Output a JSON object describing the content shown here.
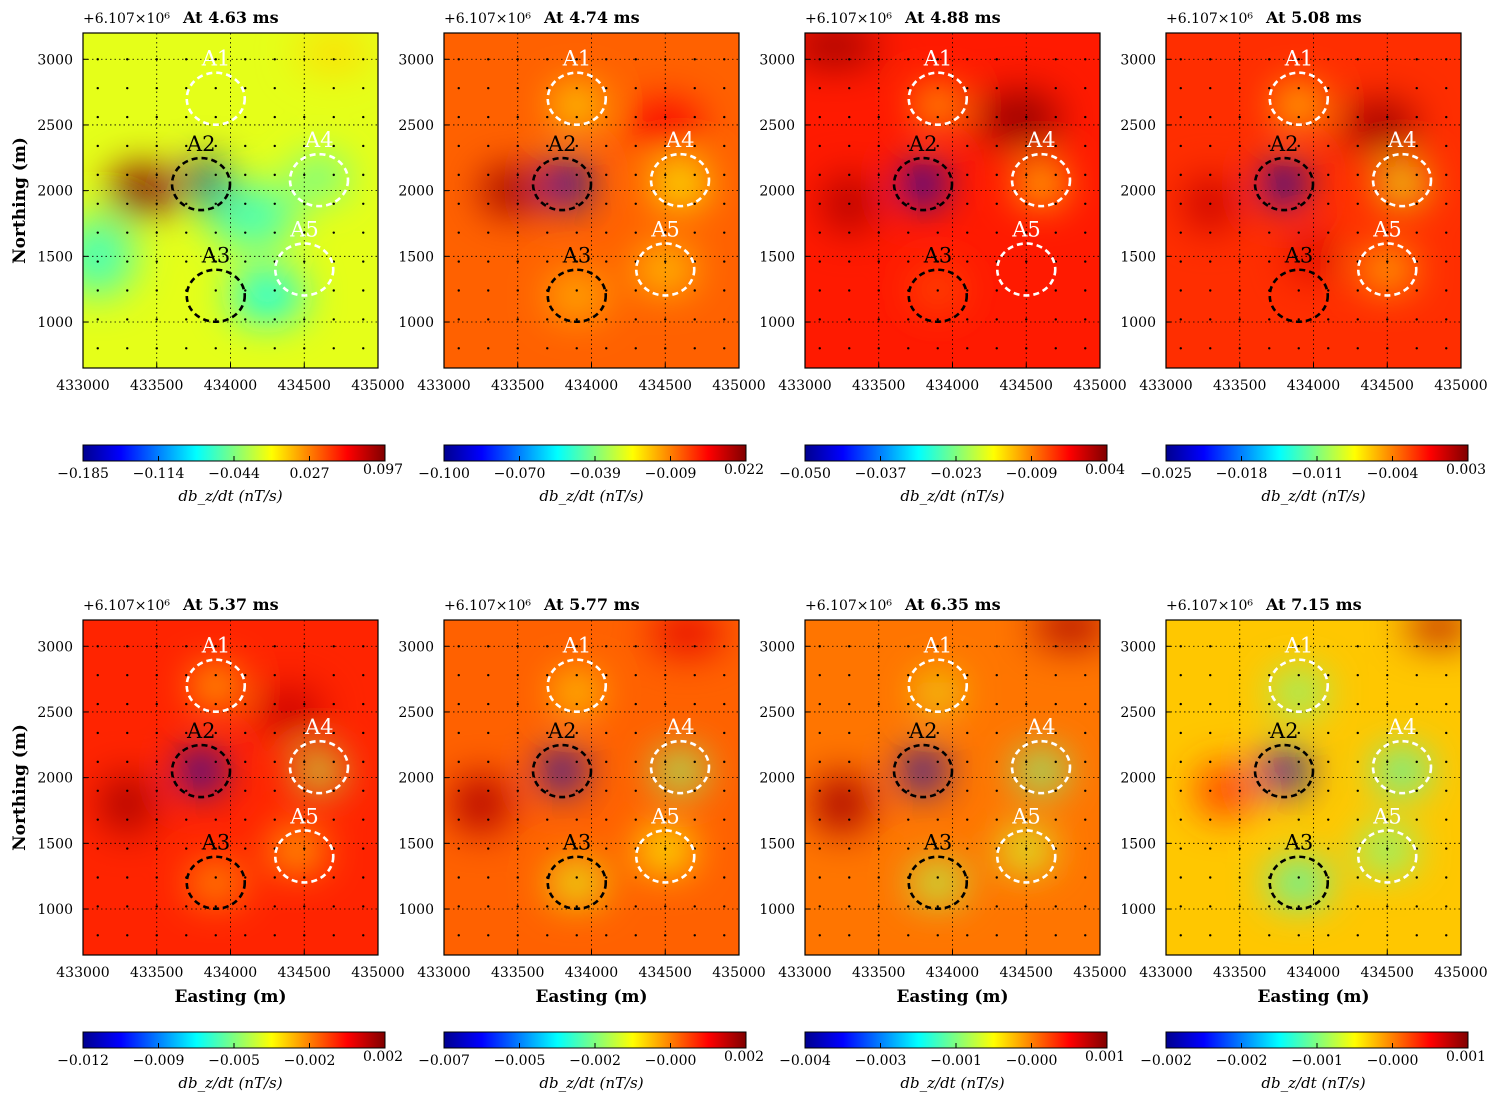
{
  "figure": {
    "offset_label": "+6.107×10⁶",
    "x_label": "Easting (m)",
    "y_label": "Northing (m)",
    "colorbar_label": "db_z/dt (nT/s)",
    "colormap": "jet"
  },
  "chart_data": [
    {
      "type": "heatmap",
      "title": "At 4.63 ms",
      "xticks": [
        "433000",
        "433500",
        "434000",
        "434500",
        "435000"
      ],
      "yticks": [
        "1000",
        "1500",
        "2000",
        "2500",
        "3000"
      ],
      "xlim": [
        433000,
        435000
      ],
      "ylim": [
        650,
        3200
      ],
      "colorbar": {
        "ticks": [
          "−0.185",
          "−0.114",
          "−0.044",
          "0.027",
          "0.097"
        ],
        "min": -0.185,
        "max": 0.097
      },
      "background_level": 0.6,
      "blobs": [
        {
          "x": 433850,
          "y": 2050,
          "level": 0.0,
          "rx": 140,
          "ry": 190,
          "name": "A2 low"
        },
        {
          "x": 433400,
          "y": 2000,
          "level": 1.0,
          "rx": 230,
          "ry": 190,
          "name": "high west of A2"
        },
        {
          "x": 434150,
          "y": 1800,
          "level": 0.45,
          "rx": 300,
          "ry": 250
        },
        {
          "x": 434250,
          "y": 1200,
          "level": 0.4,
          "rx": 250,
          "ry": 200
        },
        {
          "x": 433100,
          "y": 1500,
          "level": 0.45,
          "rx": 250,
          "ry": 300
        },
        {
          "x": 434600,
          "y": 2100,
          "level": 0.48,
          "rx": 200,
          "ry": 170
        },
        {
          "x": 434700,
          "y": 3050,
          "level": 0.66,
          "rx": 250,
          "ry": 150
        }
      ],
      "anomalies": [
        {
          "label": "A1",
          "x": 433900,
          "y": 2700,
          "style": "white"
        },
        {
          "label": "A2",
          "x": 433800,
          "y": 2050,
          "style": "black"
        },
        {
          "label": "A3",
          "x": 433900,
          "y": 1200,
          "style": "black"
        },
        {
          "label": "A4",
          "x": 434600,
          "y": 2080,
          "style": "white"
        },
        {
          "label": "A5",
          "x": 434500,
          "y": 1400,
          "style": "white"
        }
      ]
    },
    {
      "type": "heatmap",
      "title": "At 4.74 ms",
      "xticks": [
        "433000",
        "433500",
        "434000",
        "434500",
        "435000"
      ],
      "yticks": [
        "1000",
        "1500",
        "2000",
        "2500",
        "3000"
      ],
      "xlim": [
        433000,
        435000
      ],
      "ylim": [
        650,
        3200
      ],
      "colorbar": {
        "ticks": [
          "−0.100",
          "−0.070",
          "−0.039",
          "−0.009",
          "0.022"
        ],
        "min": -0.1,
        "max": 0.022
      },
      "background_level": 0.78,
      "blobs": [
        {
          "x": 433830,
          "y": 2050,
          "level": 0.05,
          "rx": 140,
          "ry": 180,
          "name": "A2 low"
        },
        {
          "x": 433450,
          "y": 2000,
          "level": 0.97,
          "rx": 200,
          "ry": 180
        },
        {
          "x": 434500,
          "y": 2500,
          "level": 0.88,
          "rx": 250,
          "ry": 180
        },
        {
          "x": 433900,
          "y": 2650,
          "level": 0.62,
          "rx": 150,
          "ry": 130
        },
        {
          "x": 434600,
          "y": 2050,
          "level": 0.62,
          "rx": 180,
          "ry": 160
        },
        {
          "x": 434500,
          "y": 1400,
          "level": 0.68,
          "rx": 200,
          "ry": 170
        },
        {
          "x": 433900,
          "y": 1200,
          "level": 0.7,
          "rx": 200,
          "ry": 170
        }
      ],
      "anomalies": [
        {
          "label": "A1",
          "x": 433900,
          "y": 2700,
          "style": "white"
        },
        {
          "label": "A2",
          "x": 433800,
          "y": 2050,
          "style": "black"
        },
        {
          "label": "A3",
          "x": 433900,
          "y": 1200,
          "style": "black"
        },
        {
          "label": "A4",
          "x": 434600,
          "y": 2080,
          "style": "white"
        },
        {
          "label": "A5",
          "x": 434500,
          "y": 1400,
          "style": "white"
        }
      ]
    },
    {
      "type": "heatmap",
      "title": "At 4.88 ms",
      "xticks": [
        "433000",
        "433500",
        "434000",
        "434500",
        "435000"
      ],
      "yticks": [
        "1000",
        "1500",
        "2000",
        "2500",
        "3000"
      ],
      "xlim": [
        433000,
        435000
      ],
      "ylim": [
        650,
        3200
      ],
      "colorbar": {
        "ticks": [
          "−0.050",
          "−0.037",
          "−0.023",
          "−0.009",
          "0.004"
        ],
        "min": -0.05,
        "max": 0.004
      },
      "background_level": 0.85,
      "blobs": [
        {
          "x": 433800,
          "y": 2050,
          "level": 0.06,
          "rx": 140,
          "ry": 170,
          "name": "A2 low"
        },
        {
          "x": 434450,
          "y": 2550,
          "level": 0.98,
          "rx": 280,
          "ry": 200
        },
        {
          "x": 433300,
          "y": 1900,
          "level": 0.95,
          "rx": 180,
          "ry": 220
        },
        {
          "x": 433200,
          "y": 3100,
          "level": 0.97,
          "rx": 300,
          "ry": 150
        },
        {
          "x": 433900,
          "y": 2650,
          "level": 0.65,
          "rx": 140,
          "ry": 120
        },
        {
          "x": 434600,
          "y": 2050,
          "level": 0.66,
          "rx": 160,
          "ry": 150
        },
        {
          "x": 433900,
          "y": 1250,
          "level": 0.8,
          "rx": 180,
          "ry": 160
        }
      ],
      "anomalies": [
        {
          "label": "A1",
          "x": 433900,
          "y": 2700,
          "style": "white"
        },
        {
          "label": "A2",
          "x": 433800,
          "y": 2050,
          "style": "black"
        },
        {
          "label": "A3",
          "x": 433900,
          "y": 1200,
          "style": "black"
        },
        {
          "label": "A4",
          "x": 434600,
          "y": 2080,
          "style": "white"
        },
        {
          "label": "A5",
          "x": 434500,
          "y": 1400,
          "style": "white"
        }
      ]
    },
    {
      "type": "heatmap",
      "title": "At 5.08 ms",
      "xticks": [
        "433000",
        "433500",
        "434000",
        "434500",
        "435000"
      ],
      "yticks": [
        "1000",
        "1500",
        "2000",
        "2500",
        "3000"
      ],
      "xlim": [
        433000,
        435000
      ],
      "ylim": [
        650,
        3200
      ],
      "colorbar": {
        "ticks": [
          "−0.025",
          "−0.018",
          "−0.011",
          "−0.004",
          "0.003"
        ],
        "min": -0.025,
        "max": 0.003
      },
      "background_level": 0.83,
      "blobs": [
        {
          "x": 433800,
          "y": 2050,
          "level": 0.05,
          "rx": 140,
          "ry": 170,
          "name": "A2 low"
        },
        {
          "x": 434450,
          "y": 2500,
          "level": 0.97,
          "rx": 250,
          "ry": 180
        },
        {
          "x": 433300,
          "y": 1900,
          "level": 0.93,
          "rx": 170,
          "ry": 200
        },
        {
          "x": 433900,
          "y": 2650,
          "level": 0.64,
          "rx": 150,
          "ry": 130
        },
        {
          "x": 434600,
          "y": 2050,
          "level": 0.6,
          "rx": 160,
          "ry": 150
        },
        {
          "x": 434500,
          "y": 1400,
          "level": 0.7,
          "rx": 180,
          "ry": 160
        },
        {
          "x": 434000,
          "y": 1500,
          "level": 0.92,
          "rx": 150,
          "ry": 150
        }
      ],
      "anomalies": [
        {
          "label": "A1",
          "x": 433900,
          "y": 2700,
          "style": "white"
        },
        {
          "label": "A2",
          "x": 433800,
          "y": 2050,
          "style": "black"
        },
        {
          "label": "A3",
          "x": 433900,
          "y": 1200,
          "style": "black"
        },
        {
          "label": "A4",
          "x": 434600,
          "y": 2080,
          "style": "white"
        },
        {
          "label": "A5",
          "x": 434500,
          "y": 1400,
          "style": "white"
        }
      ]
    },
    {
      "type": "heatmap",
      "title": "At 5.37 ms",
      "xticks": [
        "433000",
        "433500",
        "434000",
        "434500",
        "435000"
      ],
      "yticks": [
        "1000",
        "1500",
        "2000",
        "2500",
        "3000"
      ],
      "xlim": [
        433000,
        435000
      ],
      "ylim": [
        650,
        3200
      ],
      "colorbar": {
        "ticks": [
          "−0.012",
          "−0.009",
          "−0.005",
          "−0.002",
          "0.002"
        ],
        "min": -0.012,
        "max": 0.002
      },
      "background_level": 0.84,
      "blobs": [
        {
          "x": 433800,
          "y": 2050,
          "level": 0.06,
          "rx": 140,
          "ry": 160,
          "name": "A2 low"
        },
        {
          "x": 433300,
          "y": 1800,
          "level": 0.96,
          "rx": 180,
          "ry": 220
        },
        {
          "x": 434400,
          "y": 2500,
          "level": 0.93,
          "rx": 220,
          "ry": 180
        },
        {
          "x": 433900,
          "y": 2700,
          "level": 0.66,
          "rx": 150,
          "ry": 130
        },
        {
          "x": 434600,
          "y": 2050,
          "level": 0.55,
          "rx": 160,
          "ry": 140
        },
        {
          "x": 434450,
          "y": 1450,
          "level": 0.7,
          "rx": 180,
          "ry": 160
        },
        {
          "x": 433900,
          "y": 1200,
          "level": 0.72,
          "rx": 180,
          "ry": 150
        }
      ],
      "anomalies": [
        {
          "label": "A1",
          "x": 433900,
          "y": 2700,
          "style": "white"
        },
        {
          "label": "A2",
          "x": 433800,
          "y": 2050,
          "style": "black"
        },
        {
          "label": "A3",
          "x": 433900,
          "y": 1200,
          "style": "black"
        },
        {
          "label": "A4",
          "x": 434600,
          "y": 2080,
          "style": "white"
        },
        {
          "label": "A5",
          "x": 434500,
          "y": 1400,
          "style": "white"
        }
      ]
    },
    {
      "type": "heatmap",
      "title": "At 5.77 ms",
      "xticks": [
        "433000",
        "433500",
        "434000",
        "434500",
        "435000"
      ],
      "yticks": [
        "1000",
        "1500",
        "2000",
        "2500",
        "3000"
      ],
      "xlim": [
        433000,
        435000
      ],
      "ylim": [
        650,
        3200
      ],
      "colorbar": {
        "ticks": [
          "−0.007",
          "−0.005",
          "−0.002",
          "−0.000",
          "0.002"
        ],
        "min": -0.007,
        "max": 0.002
      },
      "background_level": 0.78,
      "blobs": [
        {
          "x": 433800,
          "y": 2050,
          "level": 0.06,
          "rx": 140,
          "ry": 160,
          "name": "A2 low"
        },
        {
          "x": 433250,
          "y": 1800,
          "level": 0.95,
          "rx": 200,
          "ry": 220
        },
        {
          "x": 434650,
          "y": 3100,
          "level": 0.9,
          "rx": 250,
          "ry": 150
        },
        {
          "x": 433900,
          "y": 2650,
          "level": 0.62,
          "rx": 140,
          "ry": 120
        },
        {
          "x": 434600,
          "y": 2050,
          "level": 0.52,
          "rx": 170,
          "ry": 150
        },
        {
          "x": 434500,
          "y": 1450,
          "level": 0.62,
          "rx": 180,
          "ry": 160
        },
        {
          "x": 433900,
          "y": 1200,
          "level": 0.6,
          "rx": 180,
          "ry": 150
        }
      ],
      "anomalies": [
        {
          "label": "A1",
          "x": 433900,
          "y": 2700,
          "style": "white"
        },
        {
          "label": "A2",
          "x": 433800,
          "y": 2050,
          "style": "black"
        },
        {
          "label": "A3",
          "x": 433900,
          "y": 1200,
          "style": "black"
        },
        {
          "label": "A4",
          "x": 434600,
          "y": 2080,
          "style": "white"
        },
        {
          "label": "A5",
          "x": 434500,
          "y": 1400,
          "style": "white"
        }
      ]
    },
    {
      "type": "heatmap",
      "title": "At 6.35 ms",
      "xticks": [
        "433000",
        "433500",
        "434000",
        "434500",
        "435000"
      ],
      "yticks": [
        "1000",
        "1500",
        "2000",
        "2500",
        "3000"
      ],
      "xlim": [
        433000,
        435000
      ],
      "ylim": [
        650,
        3200
      ],
      "colorbar": {
        "ticks": [
          "−0.004",
          "−0.003",
          "−0.001",
          "−0.000",
          "0.001"
        ],
        "min": -0.004,
        "max": 0.001
      },
      "background_level": 0.76,
      "blobs": [
        {
          "x": 433800,
          "y": 2050,
          "level": 0.06,
          "rx": 140,
          "ry": 160,
          "name": "A2 low"
        },
        {
          "x": 433250,
          "y": 1800,
          "level": 0.96,
          "rx": 200,
          "ry": 220
        },
        {
          "x": 434800,
          "y": 3150,
          "level": 0.96,
          "rx": 250,
          "ry": 140
        },
        {
          "x": 433900,
          "y": 2650,
          "level": 0.6,
          "rx": 140,
          "ry": 120
        },
        {
          "x": 434600,
          "y": 2050,
          "level": 0.5,
          "rx": 170,
          "ry": 150
        },
        {
          "x": 434500,
          "y": 1450,
          "level": 0.58,
          "rx": 180,
          "ry": 160
        },
        {
          "x": 433900,
          "y": 1200,
          "level": 0.55,
          "rx": 180,
          "ry": 150
        }
      ],
      "anomalies": [
        {
          "label": "A1",
          "x": 433900,
          "y": 2700,
          "style": "white"
        },
        {
          "label": "A2",
          "x": 433800,
          "y": 2050,
          "style": "black"
        },
        {
          "label": "A3",
          "x": 433900,
          "y": 1200,
          "style": "black"
        },
        {
          "label": "A4",
          "x": 434600,
          "y": 2080,
          "style": "white"
        },
        {
          "label": "A5",
          "x": 434500,
          "y": 1400,
          "style": "white"
        }
      ]
    },
    {
      "type": "heatmap",
      "title": "At 7.15 ms",
      "xticks": [
        "433000",
        "433500",
        "434000",
        "434500",
        "435000"
      ],
      "yticks": [
        "1000",
        "1500",
        "2000",
        "2500",
        "3000"
      ],
      "xlim": [
        433000,
        435000
      ],
      "ylim": [
        650,
        3200
      ],
      "colorbar": {
        "ticks": [
          "−0.002",
          "−0.002",
          "−0.001",
          "−0.000",
          "0.001"
        ],
        "min": -0.002,
        "max": 0.001
      },
      "background_level": 0.68,
      "blobs": [
        {
          "x": 433800,
          "y": 2050,
          "level": 0.06,
          "rx": 150,
          "ry": 170,
          "name": "A2 low"
        },
        {
          "x": 434850,
          "y": 3150,
          "level": 0.95,
          "rx": 220,
          "ry": 120
        },
        {
          "x": 433400,
          "y": 1900,
          "level": 0.82,
          "rx": 200,
          "ry": 200
        },
        {
          "x": 433900,
          "y": 2650,
          "level": 0.5,
          "rx": 180,
          "ry": 150
        },
        {
          "x": 434600,
          "y": 2050,
          "level": 0.45,
          "rx": 180,
          "ry": 160
        },
        {
          "x": 434500,
          "y": 1450,
          "level": 0.5,
          "rx": 190,
          "ry": 170
        },
        {
          "x": 433900,
          "y": 1200,
          "level": 0.45,
          "rx": 200,
          "ry": 170
        }
      ],
      "anomalies": [
        {
          "label": "A1",
          "x": 433900,
          "y": 2700,
          "style": "white"
        },
        {
          "label": "A2",
          "x": 433800,
          "y": 2050,
          "style": "black"
        },
        {
          "label": "A3",
          "x": 433900,
          "y": 1200,
          "style": "black"
        },
        {
          "label": "A4",
          "x": 434600,
          "y": 2080,
          "style": "white"
        },
        {
          "label": "A5",
          "x": 434500,
          "y": 1400,
          "style": "white"
        }
      ]
    }
  ]
}
